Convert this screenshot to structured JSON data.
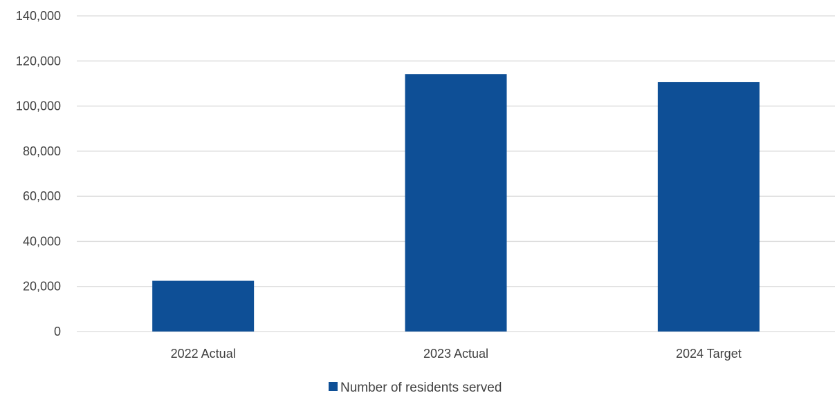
{
  "chart_data": {
    "type": "bar",
    "categories": [
      "2022 Actual",
      "2023 Actual",
      "2024 Target"
    ],
    "series": [
      {
        "name": "Number of residents served",
        "values": [
          22500,
          114200,
          110600
        ],
        "color": "#0e4f96"
      }
    ],
    "ylim": [
      0,
      140000
    ],
    "yticks": [
      0,
      20000,
      40000,
      60000,
      80000,
      100000,
      120000,
      140000
    ],
    "ytick_labels": [
      "0",
      "20,000",
      "40,000",
      "60,000",
      "80,000",
      "100,000",
      "120,000",
      "140,000"
    ],
    "grid": true,
    "gridline_color": "#d9d9d9",
    "legend_position": "bottom"
  }
}
